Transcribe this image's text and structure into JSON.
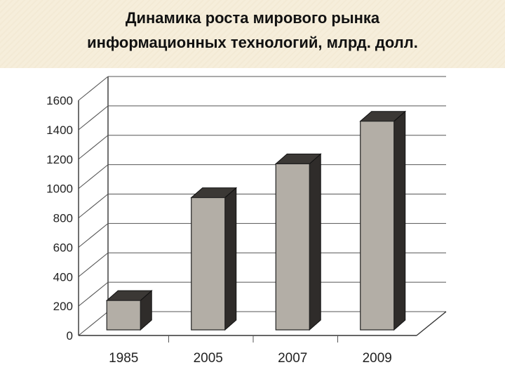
{
  "title": {
    "line1": "Динамика роста мирового рынка",
    "line2": "информационных технологий, млрд. долл."
  },
  "chart_data": {
    "type": "bar",
    "title": "Динамика роста мирового рынка информационных технологий, млрд. долл.",
    "categories": [
      "1985",
      "2005",
      "2007",
      "2009"
    ],
    "values": [
      200,
      900,
      1130,
      1420
    ],
    "ylim": [
      0,
      1600
    ],
    "yticks": [
      "0",
      "200",
      "400",
      "600",
      "800",
      "1000",
      "1200",
      "1400",
      "1600"
    ],
    "grid": true,
    "style": "3d",
    "colors": {
      "bar_front": "#b3aea6",
      "bar_side": "#2f2c2a",
      "bar_top": "#3b3835",
      "grid": "#555555"
    }
  }
}
